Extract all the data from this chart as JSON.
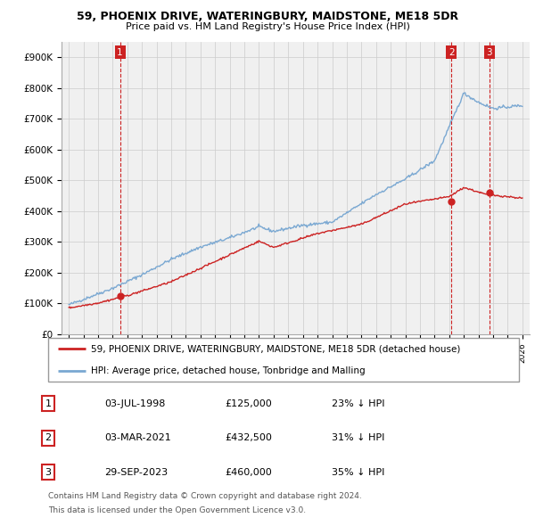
{
  "title1": "59, PHOENIX DRIVE, WATERINGBURY, MAIDSTONE, ME18 5DR",
  "title2": "Price paid vs. HM Land Registry's House Price Index (HPI)",
  "yticks": [
    0,
    100000,
    200000,
    300000,
    400000,
    500000,
    600000,
    700000,
    800000,
    900000
  ],
  "ytick_labels": [
    "£0",
    "£100K",
    "£200K",
    "£300K",
    "£400K",
    "£500K",
    "£600K",
    "£700K",
    "£800K",
    "£900K"
  ],
  "xlim_start": 1994.5,
  "xlim_end": 2026.5,
  "ylim_min": 0,
  "ylim_max": 950000,
  "sale_dates": [
    1998.5,
    2021.16,
    2023.74
  ],
  "sale_prices": [
    125000,
    432500,
    460000
  ],
  "sale_labels": [
    "1",
    "2",
    "3"
  ],
  "hpi_color": "#7aa8d2",
  "price_color": "#cc2222",
  "vline_color": "#cc2222",
  "grid_color": "#cccccc",
  "legend_label_price": "59, PHOENIX DRIVE, WATERINGBURY, MAIDSTONE, ME18 5DR (detached house)",
  "legend_label_hpi": "HPI: Average price, detached house, Tonbridge and Malling",
  "table_rows": [
    [
      "1",
      "03-JUL-1998",
      "£125,000",
      "23% ↓ HPI"
    ],
    [
      "2",
      "03-MAR-2021",
      "£432,500",
      "31% ↓ HPI"
    ],
    [
      "3",
      "29-SEP-2023",
      "£460,000",
      "35% ↓ HPI"
    ]
  ],
  "footnote1": "Contains HM Land Registry data © Crown copyright and database right 2024.",
  "footnote2": "This data is licensed under the Open Government Licence v3.0.",
  "background_color": "#ffffff",
  "plot_bg_color": "#f0f0f0"
}
